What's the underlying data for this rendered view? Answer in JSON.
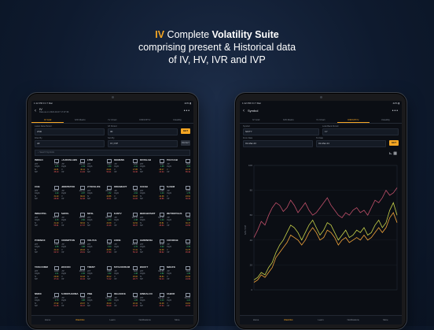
{
  "hero": {
    "line1_iv": "IV",
    "line1_pre": " Complete ",
    "line1_bold": "Volatility Suite",
    "line2": "comprising present & Historical data",
    "line3": "of IV, HV, IVR and IVP"
  },
  "colors": {
    "accent": "#f5a623",
    "up": "#3fd07a",
    "down": "#ff5a5a",
    "iv_line": "#c9d34a",
    "hv_line": "#f2a43a",
    "ivr_line": "#c0506a"
  },
  "left": {
    "status_time": "1:12 PM  Fri 7 Mar",
    "status_right": "42% ▮",
    "title": "IV",
    "subtitle": "Data as on 2024-02-07 17:07:36",
    "tabs": [
      {
        "label": "IV Grid",
        "active": true
      },
      {
        "label": "IVR Matrix",
        "active": false
      },
      {
        "label": "IV Chart",
        "active": false
      },
      {
        "label": "IVR/IVP IV",
        "active": false
      },
      {
        "label": "Volatility",
        "active": false
      }
    ],
    "form": {
      "date_label": "Latest Data Period",
      "date_value": "2ND",
      "iv_label": "IVI Period",
      "iv_value": "30",
      "filter_label": "Filter By",
      "filter_value": "All",
      "sort_label": "Sort By",
      "sort_value": "IV | IVP",
      "go": "GET",
      "reset": "RESET"
    },
    "search_placeholder": "Search Symbols",
    "cells": [
      {
        "name": "INDIGO",
        "v": [
          "1305",
          "2.45",
          "40.61",
          "35.10"
        ]
      },
      {
        "name": "LAURUSLABS",
        "v": [
          "462.15",
          "2.19",
          "30.11",
          "41.02"
        ]
      },
      {
        "name": "LTIM",
        "v": [
          "5624",
          "1.60",
          "26.41",
          "50.21"
        ]
      },
      {
        "name": "SIEMENS",
        "v": [
          "4320",
          "2.12",
          "27.85",
          "33.40"
        ]
      },
      {
        "name": "DIVISLAB",
        "v": [
          "3621",
          "1.98",
          "28.17",
          "22.04"
        ]
      },
      {
        "name": "POLYCAB",
        "v": [
          "4580",
          "3.04",
          "42.73",
          "65.19"
        ]
      },
      {
        "name": "CUB",
        "v": [
          "140.55",
          "1.20",
          "31.20",
          "28.09"
        ]
      },
      {
        "name": "HINDPETRO",
        "v": [
          "469.10",
          "2.87",
          "38.22",
          "62.38"
        ]
      },
      {
        "name": "ZYDUSLIFE",
        "v": [
          "786.60",
          "1.52",
          "29.85",
          "40.11"
        ]
      },
      {
        "name": "INDIAMART",
        "v": [
          "2612",
          "2.64",
          "33.47",
          "44.06"
        ]
      },
      {
        "name": "ICICIGI",
        "v": [
          "1388",
          "1.43",
          "24.38",
          "19.85"
        ]
      },
      {
        "name": "ALKEM",
        "v": [
          "4790",
          "1.75",
          "23.61",
          "36.42"
        ]
      },
      {
        "name": "INDHOTEL",
        "v": [
          "580.40",
          "2.15",
          "31.29",
          "55.81"
        ]
      },
      {
        "name": "ABFRL",
        "v": [
          "259.50",
          "2.90",
          "38.64",
          "47.37"
        ]
      },
      {
        "name": "MFSL",
        "v": [
          "952.70",
          "2.04",
          "29.38",
          "31.26"
        ]
      },
      {
        "name": "SUNTV",
        "v": [
          "620.10",
          "2.48",
          "32.52",
          "38.47"
        ]
      },
      {
        "name": "BERGEPAINT",
        "v": [
          "561.35",
          "1.40",
          "23.81",
          "25.64"
        ]
      },
      {
        "name": "METROPOLIS",
        "v": [
          "1734",
          "1.96",
          "30.47",
          "43.55"
        ]
      },
      {
        "name": "PVRINOX",
        "v": [
          "1420",
          "2.05",
          "34.19",
          "60.72"
        ]
      },
      {
        "name": "CROMPTON",
        "v": [
          "290.80",
          "1.98",
          "28.03",
          "29.61"
        ]
      },
      {
        "name": "VOLTAS",
        "v": [
          "1085",
          "2.24",
          "30.56",
          "47.80"
        ]
      },
      {
        "name": "EXIDE",
        "v": [
          "338.45",
          "2.76",
          "37.41",
          "56.13"
        ]
      },
      {
        "name": "GMRINFRA",
        "v": [
          "79.15",
          "3.02",
          "42.08",
          "58.62"
        ]
      },
      {
        "name": "COFORGE",
        "v": [
          "6210",
          "2.33",
          "31.75",
          "45.38"
        ]
      },
      {
        "name": "TATACOMM",
        "v": [
          "1848",
          "2.11",
          "29.90",
          "37.24"
        ]
      },
      {
        "name": "BIOCON",
        "v": [
          "265.20",
          "2.36",
          "33.18",
          "49.16"
        ]
      },
      {
        "name": "TRENT",
        "v": [
          "3985",
          "2.62",
          "35.12",
          "71.42"
        ]
      },
      {
        "name": "TATACONSUM",
        "v": [
          "1120",
          "1.48",
          "25.06",
          "28.77"
        ]
      },
      {
        "name": "BSOFT",
        "v": [
          "662.85",
          "2.82",
          "36.84",
          "52.13"
        ]
      },
      {
        "name": "SBILIFE",
        "v": [
          "1420",
          "1.36",
          "21.53",
          "24.09"
        ]
      },
      {
        "name": "NMDC",
        "v": [
          "236.60",
          "2.70",
          "37.92",
          "61.05"
        ]
      },
      {
        "name": "AUROPHARMA",
        "v": [
          "1065",
          "1.88",
          "29.67",
          "35.47"
        ]
      },
      {
        "name": "PNB",
        "v": [
          "124.35",
          "2.58",
          "36.40",
          "58.26"
        ]
      },
      {
        "name": "RELIANCE",
        "v": [
          "2925",
          "1.05",
          "20.44",
          "21.18"
        ]
      },
      {
        "name": "HINDALCO",
        "v": [
          "561.20",
          "2.13",
          "31.48",
          "37.64"
        ]
      },
      {
        "name": "DABUR",
        "v": [
          "532.05",
          "1.21",
          "19.81",
          "22.53"
        ]
      }
    ],
    "row_labels": [
      "LTP",
      "Chg%",
      "IV",
      "IVP"
    ],
    "bottom": [
      {
        "label": "Home",
        "active": false
      },
      {
        "label": "Watchlist",
        "active": true
      },
      {
        "label": "Learn",
        "active": false
      },
      {
        "label": "Notifications",
        "active": false
      },
      {
        "label": "More",
        "active": false
      }
    ]
  },
  "right": {
    "status_time": "1:12 PM  Fri 7 Mar",
    "status_right": "42% ▮",
    "title": "Symbol",
    "tabs": [
      {
        "label": "IV Grid",
        "active": false
      },
      {
        "label": "IVR Matrix",
        "active": false
      },
      {
        "label": "IV Chart",
        "active": false
      },
      {
        "label": "IVR/IVP IV",
        "active": true
      },
      {
        "label": "Volatility",
        "active": false
      }
    ],
    "form": {
      "symbol_label": "Symbol",
      "symbol_value": "NIFTY",
      "period_label": "Look Back Period",
      "period_value": "1Y",
      "from_label": "From Date",
      "from_value": "01-Mar-23",
      "to_label": "To Date",
      "to_value": "01-Mar-24",
      "go": "GET",
      "reset": "RESET"
    },
    "bottom": [
      {
        "label": "Home",
        "active": false
      },
      {
        "label": "Watchlist",
        "active": true
      },
      {
        "label": "Learn",
        "active": false
      },
      {
        "label": "Notifications",
        "active": false
      },
      {
        "label": "More",
        "active": false
      }
    ]
  },
  "chart_data": {
    "type": "line",
    "title": "",
    "xlabel": "",
    "ylabel": "IVR / IVP",
    "ylim": [
      0,
      100
    ],
    "x": [
      1,
      2,
      3,
      4,
      5,
      6,
      7,
      8,
      9,
      10,
      11,
      12,
      13,
      14,
      15,
      16,
      17,
      18,
      19,
      20,
      21,
      22,
      23,
      24,
      25,
      26,
      27,
      28,
      29,
      30,
      31,
      32,
      33,
      34,
      35,
      36,
      37,
      38,
      39,
      40
    ],
    "series": [
      {
        "name": "IVP",
        "color": "#c0506a",
        "values": [
          42,
          48,
          55,
          52,
          60,
          66,
          70,
          68,
          63,
          66,
          72,
          68,
          62,
          66,
          70,
          64,
          60,
          62,
          66,
          70,
          74,
          68,
          64,
          60,
          58,
          62,
          60,
          64,
          66,
          62,
          64,
          60,
          66,
          72,
          70,
          74,
          80,
          76,
          78,
          82
        ]
      },
      {
        "name": "IV",
        "color": "#c9d34a",
        "values": [
          8,
          10,
          14,
          12,
          18,
          22,
          30,
          36,
          40,
          46,
          52,
          50,
          46,
          40,
          46,
          52,
          56,
          50,
          44,
          48,
          54,
          52,
          46,
          40,
          44,
          48,
          42,
          44,
          48,
          46,
          50,
          44,
          46,
          52,
          56,
          50,
          54,
          64,
          70,
          60
        ]
      },
      {
        "name": "HV",
        "color": "#f2a43a",
        "values": [
          6,
          8,
          12,
          10,
          14,
          18,
          26,
          30,
          34,
          38,
          44,
          42,
          40,
          36,
          40,
          46,
          50,
          46,
          40,
          42,
          48,
          46,
          42,
          36,
          40,
          42,
          38,
          40,
          42,
          40,
          44,
          40,
          42,
          46,
          50,
          46,
          50,
          58,
          62,
          54
        ]
      }
    ]
  }
}
